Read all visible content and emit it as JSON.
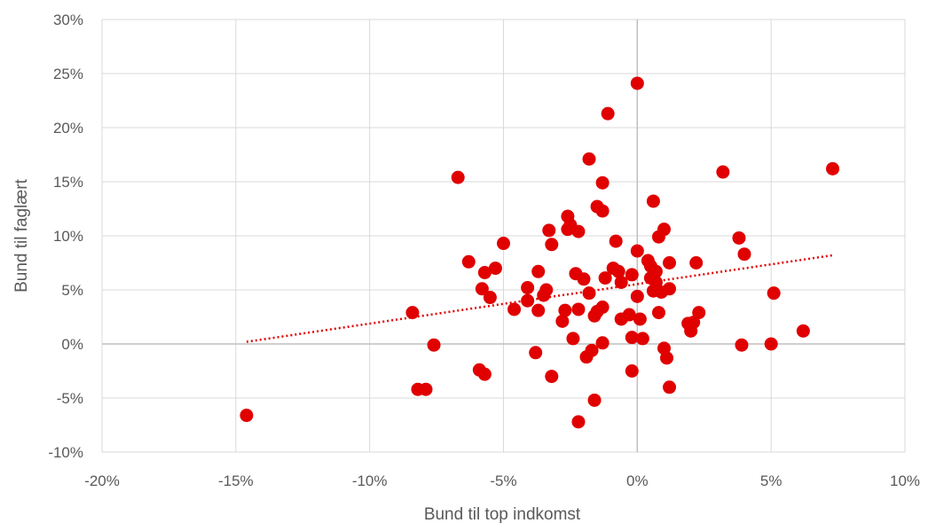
{
  "chart_data": {
    "type": "scatter",
    "title": "",
    "xlabel": "Bund til top indkomst",
    "ylabel": "Bund til faglært",
    "xlim": [
      -20,
      10
    ],
    "ylim": [
      -10,
      30
    ],
    "x_ticks": [
      -20,
      -15,
      -10,
      -5,
      0,
      5,
      10
    ],
    "y_ticks": [
      -10,
      -5,
      0,
      5,
      10,
      15,
      20,
      25,
      30
    ],
    "x_tick_labels": [
      "-20%",
      "-15%",
      "-10%",
      "-5%",
      "0%",
      "5%",
      "10%"
    ],
    "y_tick_labels": [
      "-10%",
      "-5%",
      "0%",
      "5%",
      "10%",
      "15%",
      "20%",
      "25%",
      "30%"
    ],
    "grid": true,
    "legend": "none",
    "marker_color": "#e00000",
    "trendline": {
      "style": "dotted",
      "color": "#e00000",
      "x": [
        -14.6,
        7.3
      ],
      "y": [
        0.2,
        8.2
      ]
    },
    "series": [
      {
        "points": [
          [
            -14.6,
            -6.6
          ],
          [
            -8.4,
            2.9
          ],
          [
            -8.2,
            -4.2
          ],
          [
            -7.9,
            -4.2
          ],
          [
            -7.6,
            -0.1
          ],
          [
            -6.7,
            15.4
          ],
          [
            -6.3,
            7.6
          ],
          [
            -5.9,
            -2.4
          ],
          [
            -5.8,
            5.1
          ],
          [
            -5.7,
            6.6
          ],
          [
            -5.7,
            -2.8
          ],
          [
            -5.5,
            4.3
          ],
          [
            -5.3,
            7.0
          ],
          [
            -5.0,
            9.3
          ],
          [
            -4.6,
            3.2
          ],
          [
            -4.1,
            5.2
          ],
          [
            -4.1,
            4.0
          ],
          [
            -3.8,
            -0.8
          ],
          [
            -3.7,
            3.1
          ],
          [
            -3.7,
            6.7
          ],
          [
            -3.5,
            4.5
          ],
          [
            -3.4,
            5.0
          ],
          [
            -3.3,
            10.5
          ],
          [
            -3.2,
            9.2
          ],
          [
            -3.2,
            -3.0
          ],
          [
            -2.8,
            2.1
          ],
          [
            -2.7,
            3.1
          ],
          [
            -2.6,
            10.6
          ],
          [
            -2.6,
            11.8
          ],
          [
            -2.5,
            11.0
          ],
          [
            -2.4,
            0.5
          ],
          [
            -2.3,
            6.5
          ],
          [
            -2.2,
            10.4
          ],
          [
            -2.2,
            3.2
          ],
          [
            -2.2,
            -7.2
          ],
          [
            -2.0,
            6.0
          ],
          [
            -1.9,
            -1.2
          ],
          [
            -1.8,
            4.7
          ],
          [
            -1.8,
            17.1
          ],
          [
            -1.7,
            -0.6
          ],
          [
            -1.6,
            -5.2
          ],
          [
            -1.6,
            2.6
          ],
          [
            -1.5,
            3.0
          ],
          [
            -1.5,
            12.7
          ],
          [
            -1.3,
            3.4
          ],
          [
            -1.3,
            14.9
          ],
          [
            -1.3,
            12.3
          ],
          [
            -1.3,
            0.1
          ],
          [
            -1.2,
            6.1
          ],
          [
            -1.1,
            21.3
          ],
          [
            -0.9,
            7.0
          ],
          [
            -0.8,
            9.5
          ],
          [
            -0.7,
            6.7
          ],
          [
            -0.6,
            5.7
          ],
          [
            -0.6,
            2.3
          ],
          [
            -0.3,
            2.7
          ],
          [
            -0.2,
            6.4
          ],
          [
            -0.2,
            -2.5
          ],
          [
            -0.2,
            0.6
          ],
          [
            0.0,
            24.1
          ],
          [
            0.0,
            4.4
          ],
          [
            0.0,
            8.6
          ],
          [
            0.1,
            2.3
          ],
          [
            0.2,
            0.5
          ],
          [
            0.4,
            7.7
          ],
          [
            0.5,
            7.2
          ],
          [
            0.5,
            6.1
          ],
          [
            0.6,
            4.9
          ],
          [
            0.6,
            13.2
          ],
          [
            0.7,
            6.7
          ],
          [
            0.7,
            5.7
          ],
          [
            0.8,
            9.9
          ],
          [
            0.8,
            2.9
          ],
          [
            0.9,
            4.8
          ],
          [
            1.0,
            10.6
          ],
          [
            1.0,
            -0.4
          ],
          [
            1.1,
            -1.3
          ],
          [
            1.2,
            5.1
          ],
          [
            1.2,
            -4.0
          ],
          [
            1.2,
            7.5
          ],
          [
            1.9,
            1.9
          ],
          [
            2.0,
            1.2
          ],
          [
            2.1,
            2.0
          ],
          [
            2.2,
            7.5
          ],
          [
            2.3,
            2.9
          ],
          [
            3.2,
            15.9
          ],
          [
            3.8,
            9.8
          ],
          [
            3.9,
            -0.1
          ],
          [
            4.0,
            8.3
          ],
          [
            5.0,
            0.0
          ],
          [
            5.1,
            4.7
          ],
          [
            6.2,
            1.2
          ],
          [
            7.3,
            16.2
          ]
        ]
      }
    ]
  }
}
